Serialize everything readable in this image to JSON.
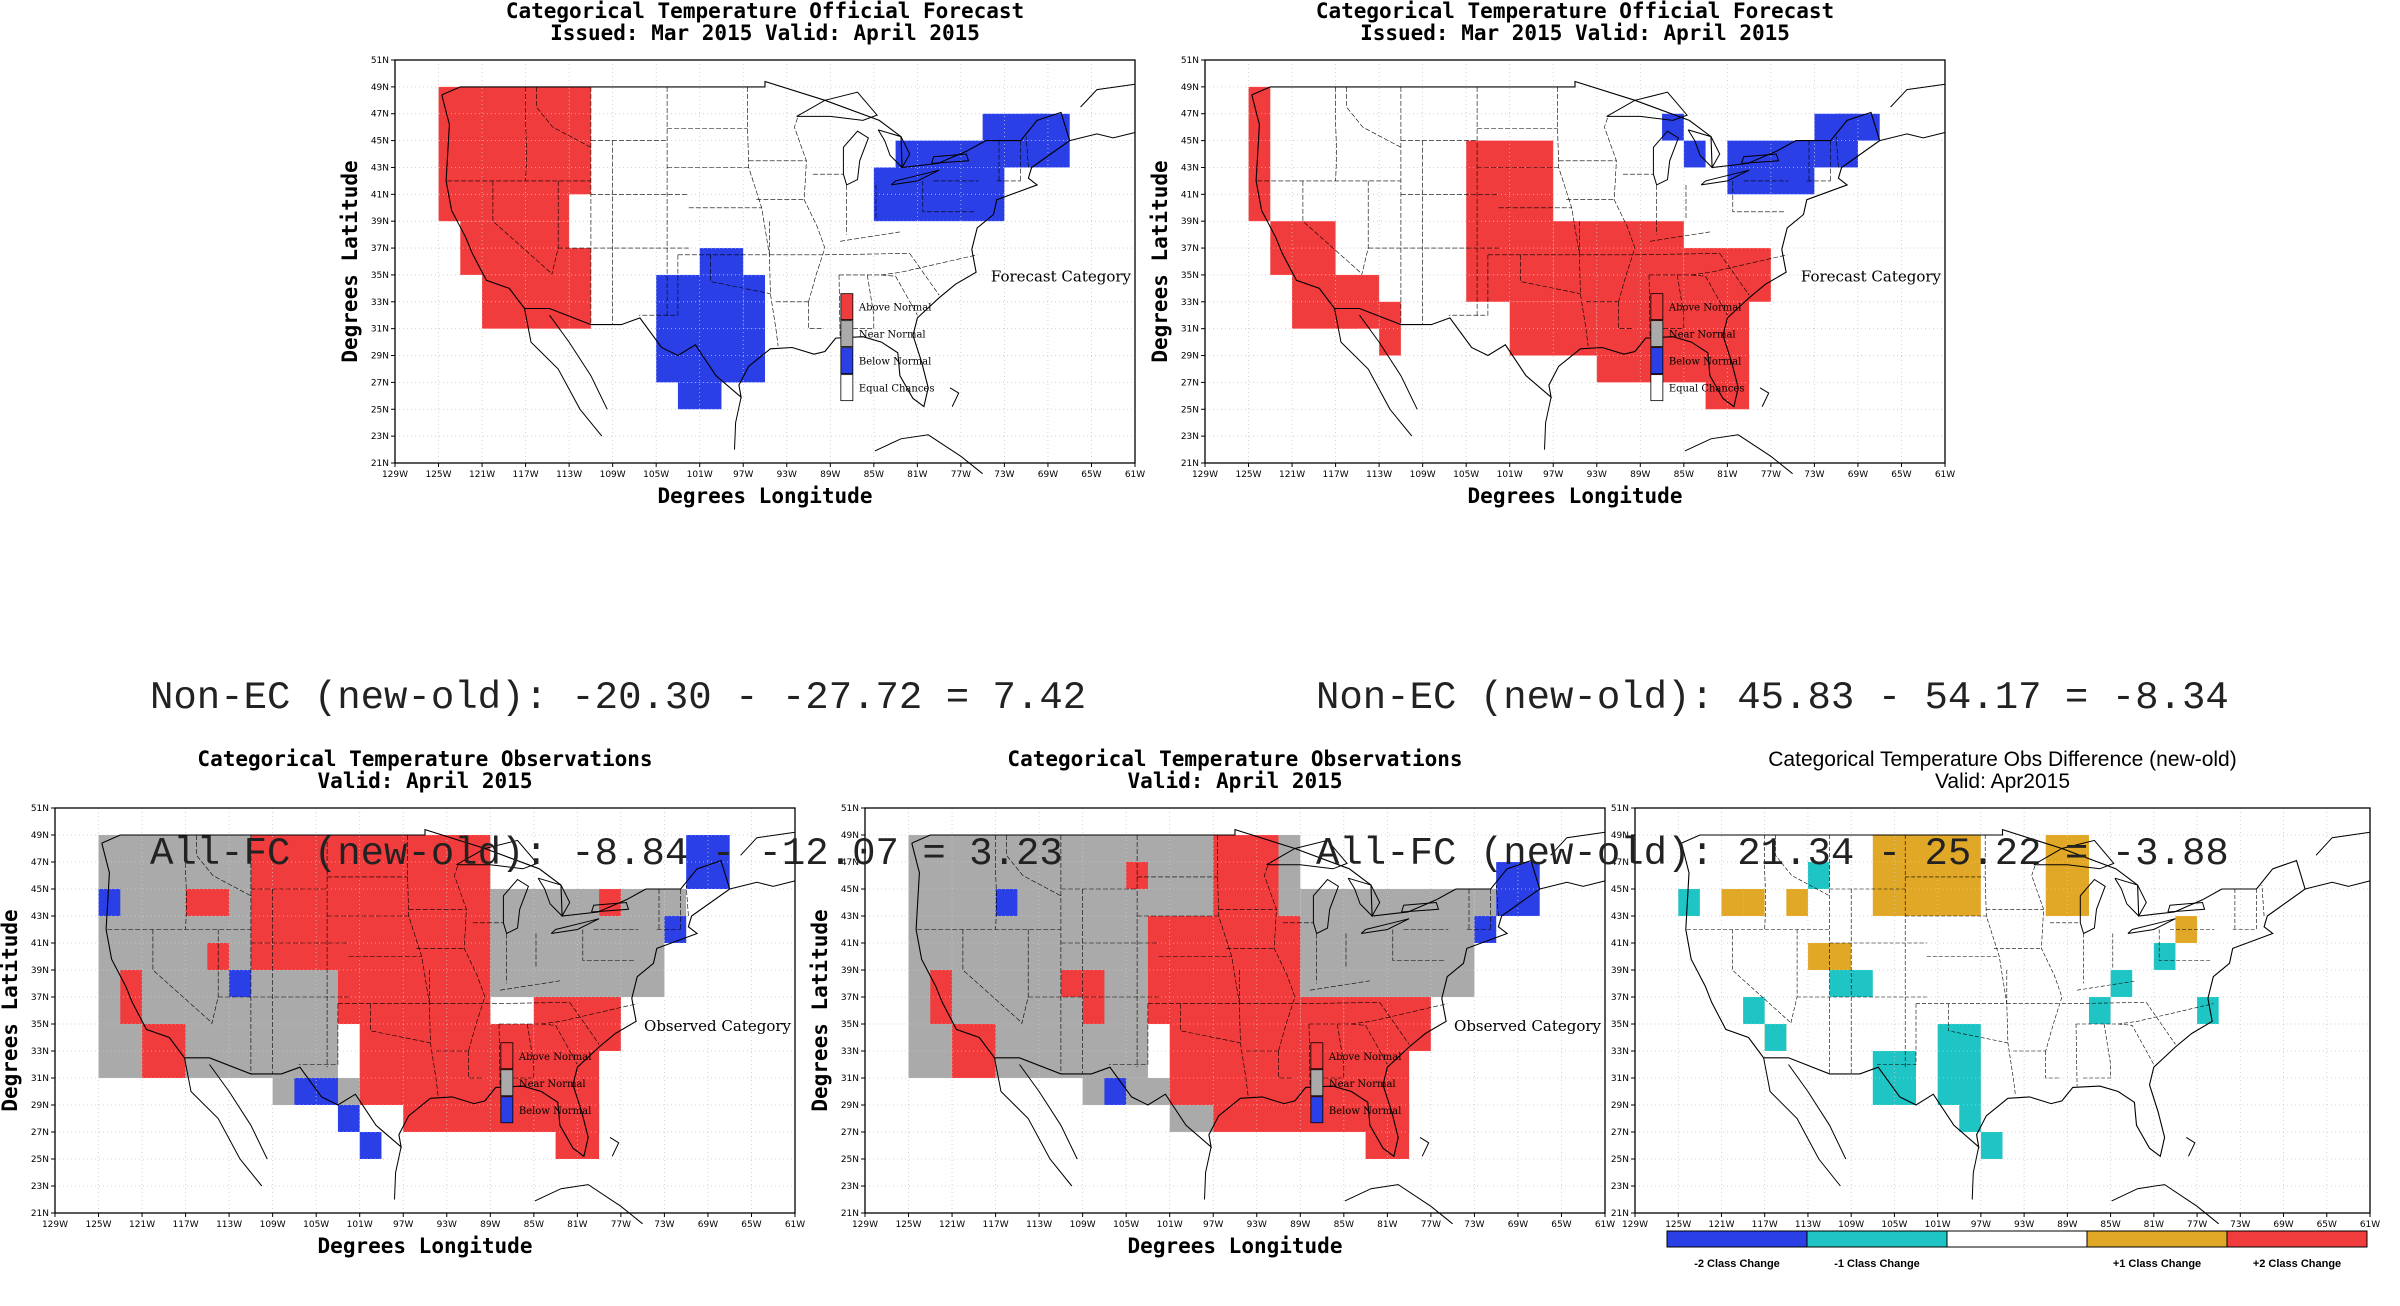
{
  "panels": [
    {
      "id": "fc-new",
      "title": [
        "Categorical Temperature Official Forecast",
        "Issued: Mar 2015 Valid: April 2015"
      ],
      "xlabel": "Degrees Longitude",
      "ylabel": "Degrees Latitude",
      "legend_title": "Forecast Category",
      "legend": [
        {
          "label": "Above Normal",
          "color": "#f03c3c"
        },
        {
          "label": "Near Normal",
          "color": "#aaaaaa"
        },
        {
          "label": "Below Normal",
          "color": "#2a3fe6"
        },
        {
          "label": "Equal Chances",
          "color": "#ffffff"
        }
      ]
    },
    {
      "id": "fc-old",
      "title": [
        "Categorical Temperature Official Forecast",
        "Issued: Mar 2015 Valid: April 2015"
      ],
      "xlabel": "Degrees Longitude",
      "ylabel": "Degrees Latitude",
      "legend_title": "Forecast Category",
      "legend": [
        {
          "label": "Above Normal",
          "color": "#f03c3c"
        },
        {
          "label": "Near Normal",
          "color": "#aaaaaa"
        },
        {
          "label": "Below Normal",
          "color": "#2a3fe6"
        },
        {
          "label": "Equal Chances",
          "color": "#ffffff"
        }
      ]
    },
    {
      "id": "obs-new",
      "title": [
        "Categorical Temperature Observations",
        "Valid: April 2015"
      ],
      "xlabel": "Degrees Longitude",
      "ylabel": "Degrees Latitude",
      "legend_title": "Observed Category",
      "legend": [
        {
          "label": "Above Normal",
          "color": "#f03c3c"
        },
        {
          "label": "Near Normal",
          "color": "#aaaaaa"
        },
        {
          "label": "Below Normal",
          "color": "#2a3fe6"
        }
      ]
    },
    {
      "id": "obs-old",
      "title": [
        "Categorical Temperature Observations",
        "Valid: April 2015"
      ],
      "xlabel": "Degrees Longitude",
      "ylabel": "Degrees Latitude",
      "legend_title": "Observed Category",
      "legend": [
        {
          "label": "Above Normal",
          "color": "#f03c3c"
        },
        {
          "label": "Near Normal",
          "color": "#aaaaaa"
        },
        {
          "label": "Below Normal",
          "color": "#2a3fe6"
        }
      ]
    },
    {
      "id": "obs-diff",
      "title": [
        "Categorical Temperature Obs Difference (new-old)",
        "Valid: Apr2015"
      ],
      "xlabel": "",
      "ylabel": "",
      "legend_title": "",
      "legend": [],
      "colorbar": [
        {
          "label": "-2 Class Change",
          "color": "#2a3fe6"
        },
        {
          "label": "-1 Class Change",
          "color": "#1fc4c4"
        },
        {
          "label": "",
          "color": "#ffffff"
        },
        {
          "label": "+1 Class Change",
          "color": "#e0a826"
        },
        {
          "label": "+2 Class Change",
          "color": "#f03c3c"
        }
      ]
    }
  ],
  "axes": {
    "lon_ticks": [
      "129W",
      "125W",
      "121W",
      "117W",
      "113W",
      "109W",
      "105W",
      "101W",
      "97W",
      "93W",
      "89W",
      "85W",
      "81W",
      "77W",
      "73W",
      "69W",
      "65W",
      "61W"
    ],
    "lat_ticks": [
      "21N",
      "23N",
      "25N",
      "27N",
      "29N",
      "31N",
      "33N",
      "35N",
      "37N",
      "39N",
      "41N",
      "43N",
      "45N",
      "47N",
      "49N",
      "51N"
    ],
    "lon_range": [
      -129,
      -61
    ],
    "lat_range": [
      21,
      51
    ]
  },
  "stats": {
    "left": [
      "Non-EC (new-old): -20.30 - -27.72 = 7.42",
      "All-FC (new-old): -8.84 - -12.07 = 3.23"
    ],
    "right": [
      "Non-EC (new-old): 45.83 - 54.17 = -8.34",
      "All-FC (new-old): 21.34 - 25.22 = -3.88"
    ]
  },
  "colors": {
    "above": "#f03c3c",
    "near": "#aaaaaa",
    "below": "#2a3fe6",
    "minus1": "#1fc4c4",
    "plus1": "#e0a826"
  }
}
